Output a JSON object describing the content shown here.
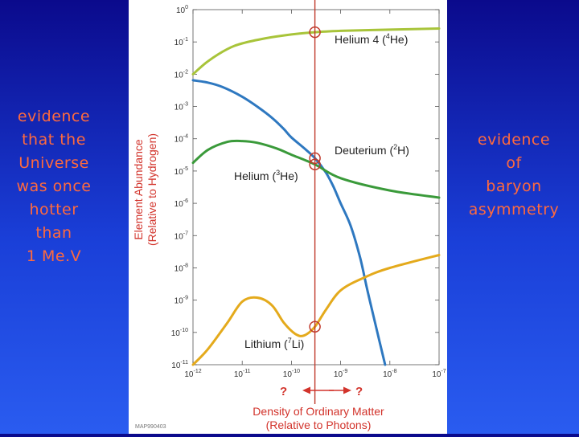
{
  "slide": {
    "left_text": "evidence\nthat the\nUniverse\nwas once\nhotter\nthan\n1 Me.V",
    "right_text": "evidence\nof\nbaryon\nasymmetry"
  },
  "chart_data": {
    "type": "line",
    "x_scale": "log",
    "y_scale": "log",
    "xlim": [
      1e-12,
      1e-07
    ],
    "ylim": [
      1e-11,
      1
    ],
    "ylabel": "Element Abundance",
    "ylabel2": "(Relative to Hydrogen)",
    "xlabel": "Density of Ordinary Matter",
    "xlabel2": "(Relative to Photons)",
    "x_ticks": [
      {
        "base": "10",
        "exp": "-12"
      },
      {
        "base": "10",
        "exp": "-11"
      },
      {
        "base": "10",
        "exp": "-10"
      },
      {
        "base": "10",
        "exp": "-9"
      },
      {
        "base": "10",
        "exp": "-8"
      },
      {
        "base": "10",
        "exp": "-7"
      }
    ],
    "y_ticks": [
      {
        "base": "10",
        "exp": "0"
      },
      {
        "base": "10",
        "exp": "-1"
      },
      {
        "base": "10",
        "exp": "-2"
      },
      {
        "base": "10",
        "exp": "-3"
      },
      {
        "base": "10",
        "exp": "-4"
      },
      {
        "base": "10",
        "exp": "-5"
      },
      {
        "base": "10",
        "exp": "-6"
      },
      {
        "base": "10",
        "exp": "-7"
      },
      {
        "base": "10",
        "exp": "-8"
      },
      {
        "base": "10",
        "exp": "-9"
      },
      {
        "base": "10",
        "exp": "-10"
      },
      {
        "base": "10",
        "exp": "-11"
      }
    ],
    "series": [
      {
        "name": "Helium 4",
        "label": {
          "pre": "Helium 4 (",
          "sup": "4",
          "post": "He)"
        },
        "color": "#a8c43a",
        "points": [
          [
            1e-12,
            0.01
          ],
          [
            2e-12,
            0.025
          ],
          [
            5e-12,
            0.06
          ],
          [
            1e-11,
            0.09
          ],
          [
            3e-11,
            0.13
          ],
          [
            1e-10,
            0.17
          ],
          [
            3e-10,
            0.2
          ],
          [
            1e-09,
            0.22
          ],
          [
            1e-08,
            0.24
          ],
          [
            1e-07,
            0.26
          ]
        ]
      },
      {
        "name": "Deuterium",
        "label": {
          "pre": "Deuterium (",
          "sup": "2",
          "post": "H)"
        },
        "color": "#2e78c0",
        "points": [
          [
            1e-12,
            0.0065
          ],
          [
            2e-12,
            0.0055
          ],
          [
            4e-12,
            0.004
          ],
          [
            1e-11,
            0.002
          ],
          [
            2e-11,
            0.001
          ],
          [
            4e-11,
            0.00045
          ],
          [
            7e-11,
            0.0002
          ],
          [
            1e-10,
            0.00011
          ],
          [
            2e-10,
            4.5e-05
          ],
          [
            3e-10,
            2.5e-05
          ],
          [
            5e-10,
            9e-06
          ],
          [
            7e-10,
            3.5e-06
          ],
          [
            1e-09,
            1e-06
          ],
          [
            1.6e-09,
            2e-07
          ],
          [
            2.5e-09,
            2e-08
          ],
          [
            3.5e-09,
            2e-09
          ],
          [
            5e-09,
            2e-10
          ],
          [
            8e-09,
            1e-11
          ]
        ]
      },
      {
        "name": "Helium 3",
        "label": {
          "pre": "Helium (",
          "sup": "3",
          "post": "He)"
        },
        "color": "#3a9a3a",
        "points": [
          [
            1e-12,
            1.8e-05
          ],
          [
            2e-12,
            4.5e-05
          ],
          [
            5e-12,
            8e-05
          ],
          [
            1e-11,
            8.5e-05
          ],
          [
            2e-11,
            7.5e-05
          ],
          [
            5e-11,
            5e-05
          ],
          [
            1e-10,
            3.2e-05
          ],
          [
            3e-10,
            1.6e-05
          ],
          [
            1e-09,
            6e-06
          ],
          [
            1e-08,
            2.5e-06
          ],
          [
            1e-07,
            1.5e-06
          ]
        ]
      },
      {
        "name": "Lithium 7",
        "label": {
          "pre": "Lithium (",
          "sup": "7",
          "post": "Li)"
        },
        "color": "#e4aa1c",
        "points": [
          [
            1e-12,
            5e-12
          ],
          [
            2e-12,
            3e-11
          ],
          [
            5e-12,
            2e-10
          ],
          [
            1e-11,
            9e-10
          ],
          [
            2e-11,
            1.2e-09
          ],
          [
            4e-11,
            7e-10
          ],
          [
            7e-11,
            2e-10
          ],
          [
            1.2e-10,
            9e-11
          ],
          [
            1.8e-10,
            8e-11
          ],
          [
            3e-10,
            1.5e-10
          ],
          [
            5e-10,
            5e-10
          ],
          [
            1e-09,
            2e-09
          ],
          [
            3e-09,
            5e-09
          ],
          [
            1e-08,
            1e-08
          ],
          [
            1e-07,
            2.5e-08
          ]
        ]
      }
    ],
    "vertical_line": {
      "x": 3e-10,
      "color": "#c0392b"
    },
    "markers": [
      {
        "x": 3e-10,
        "y": 0.2
      },
      {
        "x": 3e-10,
        "y": 2.5e-05
      },
      {
        "x": 3e-10,
        "y": 1.6e-05
      },
      {
        "x": 3e-10,
        "y": 1.5e-10
      }
    ],
    "arrow_left_label": "?",
    "arrow_right_label": "?",
    "credit": "MAP990403"
  }
}
